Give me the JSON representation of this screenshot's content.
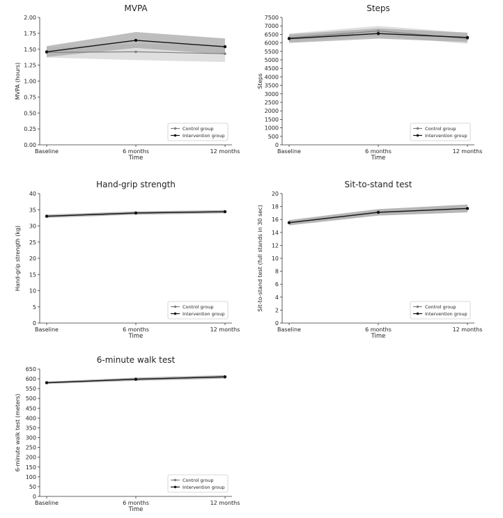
{
  "chart_data": [
    {
      "type": "line",
      "title": "MVPA",
      "xlabel": "Time",
      "ylabel": "MVPA (hours)",
      "categories": [
        "Baseline",
        "6 months",
        "12 months"
      ],
      "ylim": [
        0,
        2.0
      ],
      "yticks": [
        0.0,
        0.25,
        0.5,
        0.75,
        1.0,
        1.25,
        1.5,
        1.75,
        2.0
      ],
      "ytick_labels": [
        "0.00",
        "0.25",
        "0.50",
        "0.75",
        "1.00",
        "1.25",
        "1.50",
        "1.75",
        "2.00"
      ],
      "legend_position": "bottom-right",
      "series": [
        {
          "name": "Control group",
          "values": [
            1.45,
            1.46,
            1.43
          ],
          "lower": [
            1.37,
            1.33,
            1.3
          ],
          "upper": [
            1.53,
            1.59,
            1.56
          ],
          "color": "#808080",
          "band_color": "#d4d4d4"
        },
        {
          "name": "Intervention group",
          "values": [
            1.46,
            1.64,
            1.54
          ],
          "lower": [
            1.38,
            1.52,
            1.42
          ],
          "upper": [
            1.55,
            1.77,
            1.67
          ],
          "color": "#111111",
          "band_color": "#a8a8a8"
        }
      ]
    },
    {
      "type": "line",
      "title": "Steps",
      "xlabel": "Time",
      "ylabel": "Steps",
      "categories": [
        "Baseline",
        "6 months",
        "12 months"
      ],
      "ylim": [
        0,
        7500
      ],
      "yticks": [
        0,
        500,
        1000,
        1500,
        2000,
        2500,
        3000,
        3500,
        4000,
        4500,
        5000,
        5500,
        6000,
        6500,
        7000,
        7500
      ],
      "ytick_labels": [
        "0",
        "500",
        "1000",
        "1500",
        "2000",
        "2500",
        "3000",
        "3500",
        "4000",
        "4500",
        "5000",
        "5500",
        "6000",
        "6500",
        "7000",
        "7500"
      ],
      "legend_position": "bottom-right",
      "series": [
        {
          "name": "Control group",
          "values": [
            6300,
            6700,
            6250
          ],
          "lower": [
            6050,
            6400,
            5950
          ],
          "upper": [
            6550,
            7000,
            6600
          ],
          "color": "#808080",
          "band_color": "#d4d4d4"
        },
        {
          "name": "Intervention group",
          "values": [
            6250,
            6550,
            6320
          ],
          "lower": [
            6000,
            6250,
            6050
          ],
          "upper": [
            6500,
            6850,
            6600
          ],
          "color": "#111111",
          "band_color": "#a8a8a8"
        }
      ]
    },
    {
      "type": "line",
      "title": "Hand-grip strength",
      "xlabel": "Time",
      "ylabel": "Hand-grip strength (kg)",
      "categories": [
        "Baseline",
        "6 months",
        "12 months"
      ],
      "ylim": [
        0,
        40
      ],
      "yticks": [
        0,
        5,
        10,
        15,
        20,
        25,
        30,
        35,
        40
      ],
      "ytick_labels": [
        "0",
        "5",
        "10",
        "15",
        "20",
        "25",
        "30",
        "35",
        "40"
      ],
      "legend_position": "bottom-right",
      "series": [
        {
          "name": "Control group",
          "values": [
            33.0,
            34.0,
            34.4
          ],
          "lower": [
            32.5,
            33.5,
            33.9
          ],
          "upper": [
            33.5,
            34.5,
            34.9
          ],
          "color": "#808080",
          "band_color": "#d4d4d4"
        },
        {
          "name": "Intervention group",
          "values": [
            33.0,
            34.0,
            34.4
          ],
          "lower": [
            32.5,
            33.5,
            33.9
          ],
          "upper": [
            33.5,
            34.5,
            34.9
          ],
          "color": "#111111",
          "band_color": "#a8a8a8"
        }
      ]
    },
    {
      "type": "line",
      "title": "Sit-to-stand test",
      "xlabel": "Time",
      "ylabel": "Sit-to-stand test (full stands in 30 sec)",
      "categories": [
        "Baseline",
        "6 months",
        "12 months"
      ],
      "ylim": [
        0,
        20
      ],
      "yticks": [
        0,
        2,
        4,
        6,
        8,
        10,
        12,
        14,
        16,
        18,
        20
      ],
      "ytick_labels": [
        "0",
        "2",
        "4",
        "6",
        "8",
        "10",
        "12",
        "14",
        "16",
        "18",
        "20"
      ],
      "legend_position": "bottom-right",
      "series": [
        {
          "name": "Control group",
          "values": [
            15.5,
            17.1,
            17.7
          ],
          "lower": [
            15.1,
            16.6,
            17.1
          ],
          "upper": [
            15.9,
            17.6,
            18.3
          ],
          "color": "#808080",
          "band_color": "#d4d4d4"
        },
        {
          "name": "Intervention group",
          "values": [
            15.5,
            17.1,
            17.7
          ],
          "lower": [
            15.1,
            16.6,
            17.1
          ],
          "upper": [
            15.9,
            17.6,
            18.3
          ],
          "color": "#111111",
          "band_color": "#a8a8a8"
        }
      ]
    },
    {
      "type": "line",
      "title": "6-minute walk test",
      "xlabel": "Time",
      "ylabel": "6-minute walk test (meters)",
      "categories": [
        "Baseline",
        "6 months",
        "12 months"
      ],
      "ylim": [
        0,
        650
      ],
      "yticks": [
        0,
        50,
        100,
        150,
        200,
        250,
        300,
        350,
        400,
        450,
        500,
        550,
        600,
        650
      ],
      "ytick_labels": [
        "0",
        "50",
        "100",
        "150",
        "200",
        "250",
        "300",
        "350",
        "400",
        "450",
        "500",
        "550",
        "600",
        "650"
      ],
      "legend_position": "bottom-right",
      "series": [
        {
          "name": "Control group",
          "values": [
            580,
            598,
            610
          ],
          "lower": [
            574,
            590,
            601
          ],
          "upper": [
            586,
            606,
            619
          ],
          "color": "#808080",
          "band_color": "#d4d4d4"
        },
        {
          "name": "Intervention group",
          "values": [
            580,
            598,
            610
          ],
          "lower": [
            574,
            590,
            601
          ],
          "upper": [
            586,
            606,
            619
          ],
          "color": "#111111",
          "band_color": "#a8a8a8"
        }
      ]
    }
  ]
}
